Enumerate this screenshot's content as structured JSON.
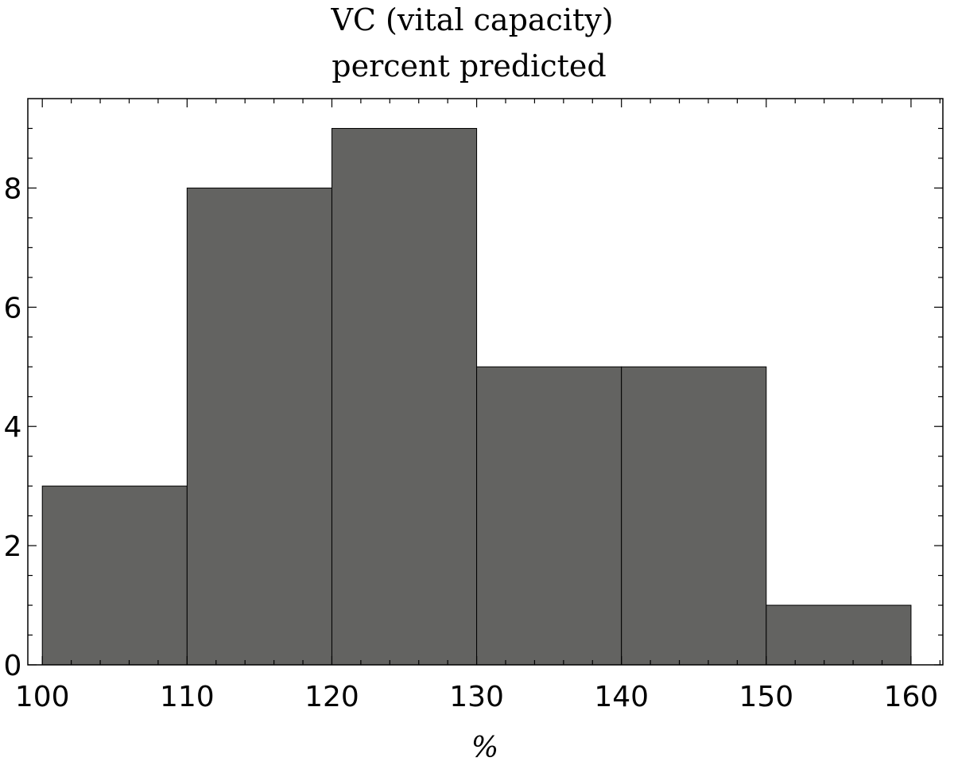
{
  "chart_data": {
    "type": "bar",
    "title_lines": [
      "VC (vital capacity)",
      "percent predicted"
    ],
    "xlabel": "%",
    "ylabel": "",
    "bins": [
      {
        "start": 100,
        "end": 110,
        "count": 3
      },
      {
        "start": 110,
        "end": 120,
        "count": 8
      },
      {
        "start": 120,
        "end": 130,
        "count": 9
      },
      {
        "start": 130,
        "end": 140,
        "count": 5
      },
      {
        "start": 140,
        "end": 150,
        "count": 5
      },
      {
        "start": 150,
        "end": 160,
        "count": 1
      }
    ],
    "xlim": [
      99,
      162.2
    ],
    "ylim": [
      0,
      9.5
    ],
    "x_ticks": [
      100,
      110,
      120,
      130,
      140,
      150,
      160
    ],
    "y_ticks": [
      0,
      2,
      4,
      6,
      8
    ],
    "bar_color": "#636361",
    "grid": false
  }
}
